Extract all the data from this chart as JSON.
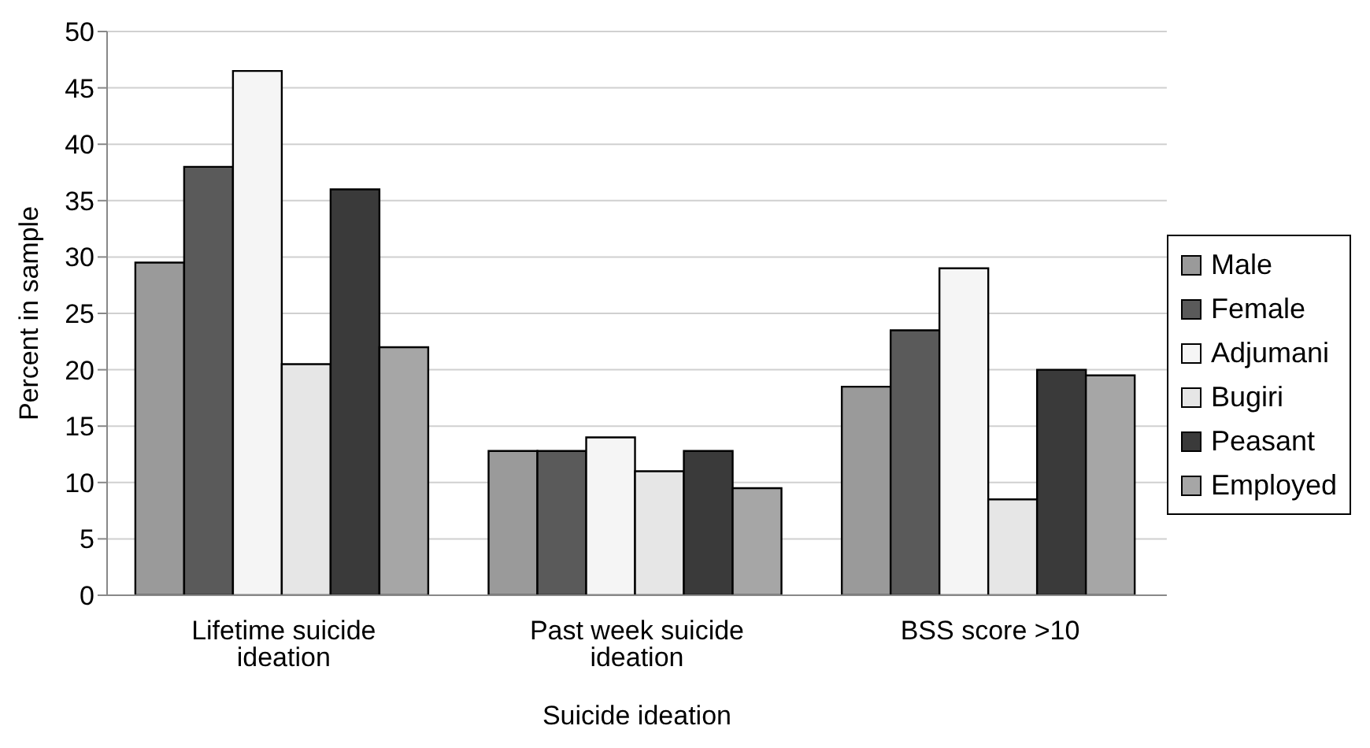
{
  "chart_data": {
    "type": "bar",
    "xlabel": "Suicide ideation",
    "ylabel": "Percent in sample",
    "categories": [
      "Lifetime suicide ideation",
      "Past week suicide ideation",
      "BSS score >10"
    ],
    "series": [
      {
        "name": "Male",
        "color": "#9a9a9a",
        "values": [
          29.5,
          12.8,
          18.5
        ]
      },
      {
        "name": "Female",
        "color": "#5a5a5a",
        "values": [
          38,
          12.8,
          23.5
        ]
      },
      {
        "name": "Adjumani",
        "color": "#f5f5f5",
        "values": [
          46.5,
          14,
          29
        ]
      },
      {
        "name": "Bugiri",
        "color": "#e6e6e6",
        "values": [
          20.5,
          11,
          8.5
        ]
      },
      {
        "name": "Peasant",
        "color": "#3a3a3a",
        "values": [
          36,
          12.8,
          20
        ]
      },
      {
        "name": "Employed",
        "color": "#a6a6a6",
        "values": [
          22,
          9.5,
          19.5
        ]
      }
    ],
    "ylim": [
      0,
      50
    ],
    "yticks": [
      0,
      5,
      10,
      15,
      20,
      25,
      30,
      35,
      40,
      45,
      50
    ],
    "grid": "y",
    "legend": "right"
  }
}
